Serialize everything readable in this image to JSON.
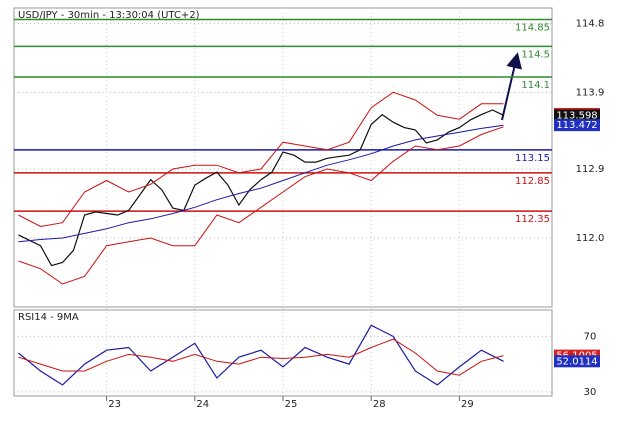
{
  "chart_data": [
    {
      "type": "line",
      "title": "USD/JPY - 30min - 13:30:04 (UTC+2)",
      "xlim": [
        -0.05,
        6.05
      ],
      "xticks": [
        {
          "value": 1,
          "label": "23"
        },
        {
          "value": 2,
          "label": "24"
        },
        {
          "value": 3,
          "label": "25"
        },
        {
          "value": 4,
          "label": "28"
        },
        {
          "value": 5,
          "label": "29"
        }
      ],
      "ylim": [
        111.1,
        115.0
      ],
      "yticks": [
        {
          "value": 114.8,
          "label": "114.8"
        },
        {
          "value": 113.9,
          "label": "113.9"
        },
        {
          "value": 112.9,
          "label": "112.9"
        },
        {
          "value": 112,
          "label": "112.0"
        }
      ],
      "grid": true,
      "series": [
        {
          "color": "#111111",
          "x": [
            0,
            0.125,
            0.25,
            0.375,
            0.5,
            0.625,
            0.75,
            0.875,
            1,
            1.125,
            1.25,
            1.375,
            1.5,
            1.625,
            1.75,
            1.875,
            2,
            2.125,
            2.25,
            2.375,
            2.5,
            2.625,
            2.75,
            2.875,
            3,
            3.125,
            3.25,
            3.375,
            3.5,
            3.625,
            3.75,
            3.875,
            4,
            4.125,
            4.25,
            4.375,
            4.5,
            4.625,
            4.75,
            4.875,
            5,
            5.125,
            5.25,
            5.375,
            5.5
          ],
          "values": [
            112.04,
            111.97,
            111.9,
            111.64,
            111.68,
            111.84,
            112.3,
            112.34,
            112.32,
            112.3,
            112.36,
            112.56,
            112.76,
            112.63,
            112.39,
            112.36,
            112.69,
            112.78,
            112.86,
            112.69,
            112.43,
            112.63,
            112.76,
            112.86,
            113.12,
            113.08,
            112.99,
            112.99,
            113.04,
            113.06,
            113.08,
            113.15,
            113.48,
            113.61,
            113.51,
            113.44,
            113.41,
            113.24,
            113.28,
            113.38,
            113.44,
            113.54,
            113.61,
            113.67,
            113.6
          ]
        },
        {
          "color": "#1a1aa6",
          "x": [
            0,
            0.25,
            0.5,
            0.75,
            1,
            1.25,
            1.5,
            1.75,
            2,
            2.25,
            2.5,
            2.75,
            3,
            3.25,
            3.5,
            3.75,
            4,
            4.25,
            4.5,
            4.75,
            5,
            5.25,
            5.5
          ],
          "values": [
            111.95,
            111.98,
            112.0,
            112.06,
            112.12,
            112.2,
            112.25,
            112.32,
            112.4,
            112.5,
            112.58,
            112.65,
            112.75,
            112.85,
            112.95,
            113.02,
            113.1,
            113.2,
            113.28,
            113.33,
            113.38,
            113.43,
            113.47
          ]
        },
        {
          "color": "#cc1111",
          "x": [
            0,
            0.25,
            0.5,
            0.75,
            1,
            1.25,
            1.5,
            1.75,
            2,
            2.25,
            2.5,
            2.75,
            3,
            3.25,
            3.5,
            3.75,
            4,
            4.25,
            4.5,
            4.75,
            5,
            5.25,
            5.5
          ],
          "values": [
            112.3,
            112.15,
            112.2,
            112.6,
            112.75,
            112.6,
            112.7,
            112.9,
            112.95,
            112.95,
            112.85,
            112.9,
            113.25,
            113.2,
            113.15,
            113.25,
            113.7,
            113.9,
            113.8,
            113.6,
            113.55,
            113.75,
            113.75
          ]
        },
        {
          "color": "#cc1111",
          "x": [
            0,
            0.25,
            0.5,
            0.75,
            1,
            1.25,
            1.5,
            1.75,
            2,
            2.25,
            2.5,
            2.75,
            3,
            3.25,
            3.5,
            3.75,
            4,
            4.25,
            4.5,
            4.75,
            5,
            5.25,
            5.5
          ],
          "values": [
            111.7,
            111.6,
            111.4,
            111.5,
            111.9,
            111.95,
            112.0,
            111.9,
            111.9,
            112.3,
            112.2,
            112.4,
            112.6,
            112.8,
            112.9,
            112.85,
            112.75,
            113.0,
            113.2,
            113.15,
            113.2,
            113.35,
            113.45
          ]
        }
      ],
      "levels": [
        {
          "value": 114.85,
          "color": "#2e8b2e"
        },
        {
          "value": 114.5,
          "color": "#2e8b2e"
        },
        {
          "value": 114.1,
          "color": "#2e8b2e"
        },
        {
          "value": 113.15,
          "color": "#1a1aa6"
        },
        {
          "value": 112.85,
          "color": "#cc1111"
        },
        {
          "value": 112.35,
          "color": "#cc1111"
        }
      ],
      "tags": [
        {
          "value": 113.618,
          "color": "#d42020"
        },
        {
          "value": 113.598,
          "color": "#111111"
        },
        {
          "value": 113.472,
          "color": "#2030c0"
        }
      ]
    },
    {
      "type": "line",
      "title": "RSI14 - 9MA",
      "xlim": [
        -0.05,
        6.05
      ],
      "ylim": [
        27,
        89
      ],
      "yticks": [
        70,
        30
      ],
      "grid": true,
      "series": [
        {
          "color": "#1a1aa6",
          "x": [
            0,
            0.25,
            0.5,
            0.75,
            1,
            1.25,
            1.5,
            1.75,
            2,
            2.25,
            2.5,
            2.75,
            3,
            3.25,
            3.5,
            3.75,
            4,
            4.25,
            4.5,
            4.75,
            5,
            5.25,
            5.5
          ],
          "values": [
            58,
            45,
            35,
            50,
            60,
            62,
            45,
            55,
            65,
            40,
            55,
            60,
            48,
            62,
            55,
            50,
            78,
            70,
            45,
            35,
            48,
            60,
            52
          ]
        },
        {
          "color": "#cc1111",
          "x": [
            0,
            0.25,
            0.5,
            0.75,
            1,
            1.25,
            1.5,
            1.75,
            2,
            2.25,
            2.5,
            2.75,
            3,
            3.25,
            3.5,
            3.75,
            4,
            4.25,
            4.5,
            4.75,
            5,
            5.25,
            5.5
          ],
          "values": [
            55,
            50,
            45,
            45,
            52,
            57,
            55,
            52,
            57,
            52,
            50,
            55,
            54,
            55,
            57,
            55,
            62,
            68,
            58,
            45,
            42,
            52,
            56.1
          ]
        }
      ],
      "tags": [
        {
          "value": 56.1005,
          "color": "#d42020"
        },
        {
          "value": 52.0114,
          "color": "#2030c0"
        }
      ]
    }
  ]
}
